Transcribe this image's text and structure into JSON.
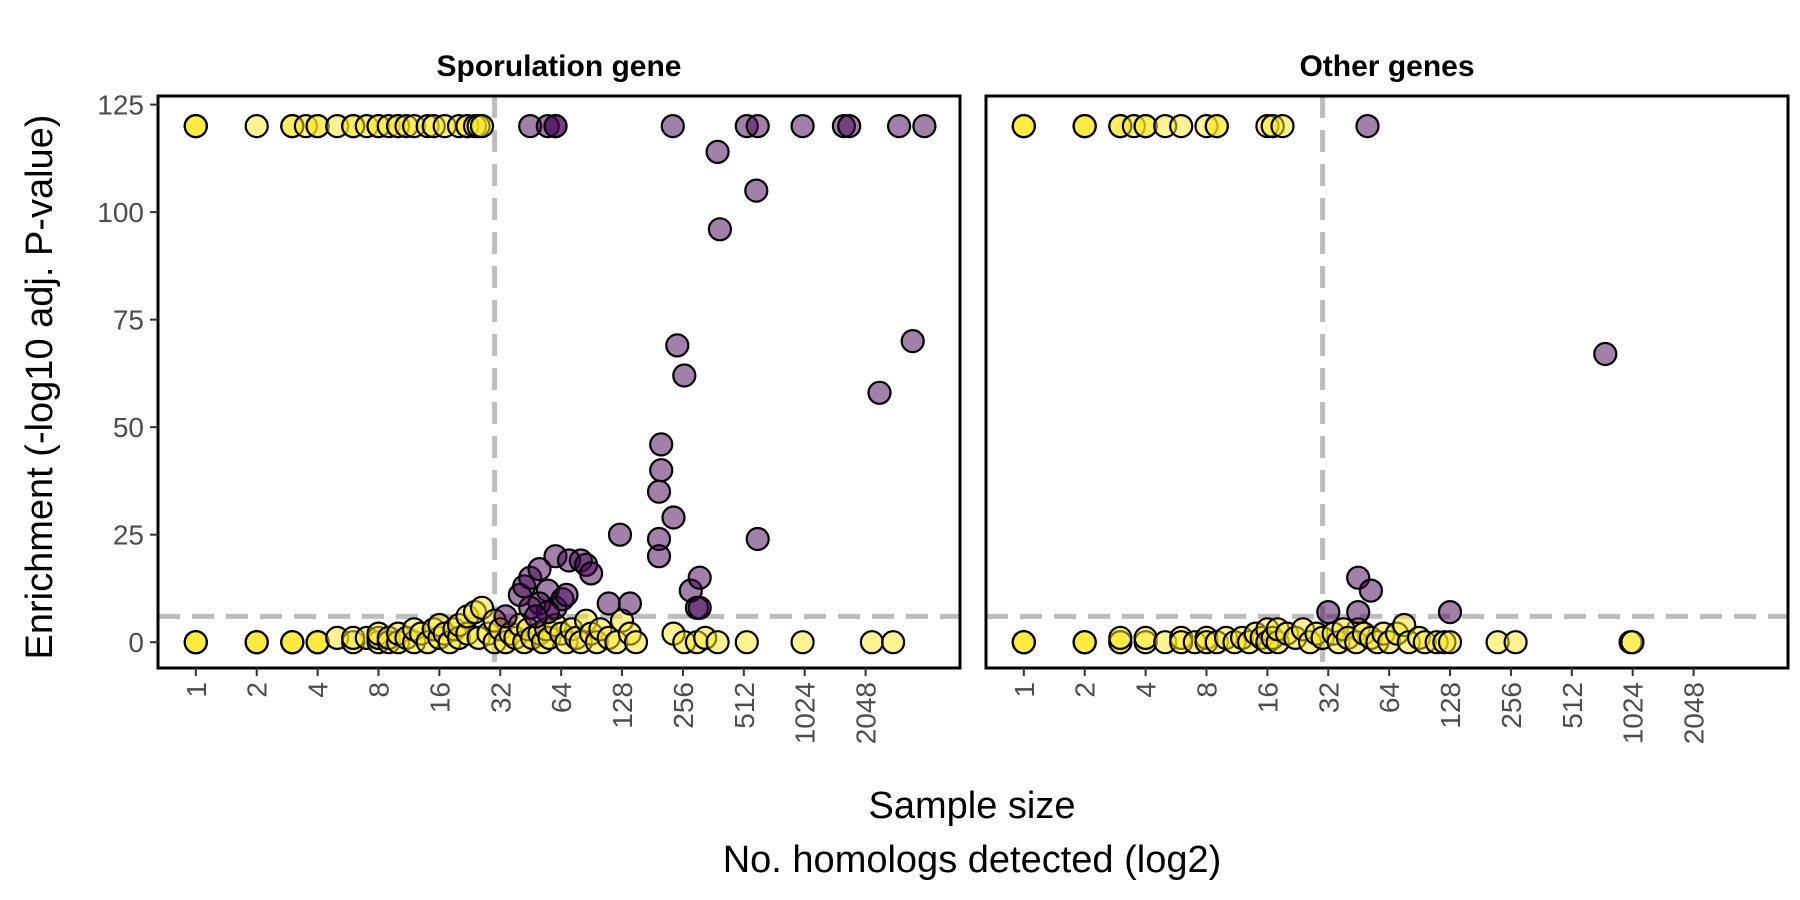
{
  "chart_data": {
    "type": "scatter",
    "xlabel_line1": "Sample size",
    "xlabel_line2": "No. homologs detected (log2)",
    "ylabel": "Enrichment (-log10 adj. P-value)",
    "x_scale": "log2",
    "x_ticks": [
      1,
      2,
      4,
      8,
      16,
      32,
      64,
      128,
      256,
      512,
      1024,
      2048
    ],
    "y_ticks": [
      0,
      25,
      50,
      75,
      100,
      125
    ],
    "ylim": [
      -6,
      127
    ],
    "x_range": [
      0.65,
      6000
    ],
    "threshold_x": 30,
    "threshold_y": 6,
    "colors": {
      "significant": "#440154",
      "not_significant": "#fde725",
      "reference_line": "#bdbdbd"
    },
    "point_opacity": 0.5,
    "panels": [
      {
        "title": "Sporulation gene",
        "points": [
          [
            1,
            120
          ],
          [
            1,
            120
          ],
          [
            1,
            120
          ],
          [
            2,
            120
          ],
          [
            3,
            120
          ],
          [
            3,
            120
          ],
          [
            3.5,
            120
          ],
          [
            4,
            120
          ],
          [
            4,
            120
          ],
          [
            5,
            120
          ],
          [
            6,
            120
          ],
          [
            6,
            120
          ],
          [
            7,
            120
          ],
          [
            8,
            120
          ],
          [
            8,
            120
          ],
          [
            9,
            120
          ],
          [
            10,
            120
          ],
          [
            10,
            120
          ],
          [
            11,
            120
          ],
          [
            12,
            120
          ],
          [
            14,
            120
          ],
          [
            15,
            120
          ],
          [
            17,
            120
          ],
          [
            20,
            120
          ],
          [
            22,
            120
          ],
          [
            22,
            120
          ],
          [
            24,
            120
          ],
          [
            25,
            120
          ],
          [
            26,
            120
          ],
          [
            45,
            120
          ],
          [
            55,
            120
          ],
          [
            60,
            120
          ],
          [
            60,
            120
          ],
          [
            228,
            120
          ],
          [
            530,
            120
          ],
          [
            600,
            120
          ],
          [
            1000,
            120
          ],
          [
            1600,
            120
          ],
          [
            1700,
            120
          ],
          [
            3000,
            120
          ],
          [
            4000,
            120
          ],
          [
            380,
            114
          ],
          [
            590,
            105
          ],
          [
            390,
            96
          ],
          [
            240,
            69
          ],
          [
            260,
            62
          ],
          [
            3500,
            70
          ],
          [
            2400,
            58
          ],
          [
            200,
            46
          ],
          [
            200,
            40
          ],
          [
            195,
            35
          ],
          [
            230,
            29
          ],
          [
            125,
            25
          ],
          [
            195,
            24
          ],
          [
            195,
            20
          ],
          [
            600,
            24
          ],
          [
            280,
            12
          ],
          [
            310,
            15
          ],
          [
            300,
            8
          ],
          [
            310,
            8
          ],
          [
            140,
            9
          ],
          [
            110,
            9
          ],
          [
            40,
            11
          ],
          [
            42,
            13
          ],
          [
            45,
            15
          ],
          [
            50,
            17
          ],
          [
            55,
            12
          ],
          [
            60,
            8
          ],
          [
            60,
            20
          ],
          [
            65,
            10
          ],
          [
            70,
            19
          ],
          [
            80,
            19
          ],
          [
            85,
            18
          ],
          [
            90,
            16
          ],
          [
            50,
            9
          ],
          [
            45,
            8
          ],
          [
            55,
            7
          ],
          [
            68,
            11
          ],
          [
            1,
            0
          ],
          [
            1,
            0
          ],
          [
            1,
            0
          ],
          [
            2,
            0
          ],
          [
            2,
            0
          ],
          [
            2,
            0
          ],
          [
            3,
            0
          ],
          [
            3,
            0
          ],
          [
            3,
            0
          ],
          [
            4,
            0
          ],
          [
            4,
            0
          ],
          [
            4,
            0
          ],
          [
            5,
            1
          ],
          [
            6,
            0
          ],
          [
            6,
            1
          ],
          [
            7,
            1
          ],
          [
            8,
            0
          ],
          [
            8,
            1
          ],
          [
            8,
            2
          ],
          [
            9,
            0
          ],
          [
            9,
            1
          ],
          [
            10,
            0
          ],
          [
            10,
            2
          ],
          [
            11,
            1
          ],
          [
            12,
            0
          ],
          [
            12,
            3
          ],
          [
            13,
            2
          ],
          [
            14,
            0
          ],
          [
            15,
            3
          ],
          [
            16,
            1
          ],
          [
            16,
            4
          ],
          [
            17,
            2
          ],
          [
            18,
            0
          ],
          [
            19,
            3
          ],
          [
            20,
            1
          ],
          [
            20,
            4
          ],
          [
            22,
            2
          ],
          [
            22,
            6
          ],
          [
            24,
            7
          ],
          [
            25,
            1
          ],
          [
            26,
            8
          ],
          [
            28,
            2
          ],
          [
            30,
            0
          ],
          [
            30,
            5
          ],
          [
            32,
            3
          ],
          [
            34,
            0
          ],
          [
            34,
            6
          ],
          [
            36,
            2
          ],
          [
            38,
            1
          ],
          [
            40,
            4
          ],
          [
            42,
            0
          ],
          [
            44,
            3
          ],
          [
            46,
            1
          ],
          [
            48,
            6
          ],
          [
            50,
            2
          ],
          [
            52,
            0
          ],
          [
            54,
            3
          ],
          [
            56,
            1
          ],
          [
            60,
            4
          ],
          [
            64,
            2
          ],
          [
            68,
            0
          ],
          [
            72,
            3
          ],
          [
            76,
            1
          ],
          [
            80,
            0
          ],
          [
            85,
            5
          ],
          [
            90,
            2
          ],
          [
            96,
            0
          ],
          [
            100,
            3
          ],
          [
            110,
            1
          ],
          [
            120,
            0
          ],
          [
            128,
            5
          ],
          [
            140,
            2
          ],
          [
            150,
            0
          ],
          [
            230,
            2
          ],
          [
            260,
            0
          ],
          [
            300,
            0
          ],
          [
            330,
            1
          ],
          [
            380,
            0
          ],
          [
            530,
            0
          ],
          [
            1000,
            0
          ],
          [
            2200,
            0
          ],
          [
            2800,
            0
          ]
        ]
      },
      {
        "title": "Other genes",
        "points": [
          [
            1,
            120
          ],
          [
            1,
            120
          ],
          [
            1,
            120
          ],
          [
            2,
            120
          ],
          [
            2,
            120
          ],
          [
            2,
            120
          ],
          [
            3,
            120
          ],
          [
            3,
            120
          ],
          [
            3.5,
            120
          ],
          [
            4,
            120
          ],
          [
            4,
            120
          ],
          [
            5,
            120
          ],
          [
            6,
            120
          ],
          [
            8,
            120
          ],
          [
            9,
            120
          ],
          [
            9,
            120
          ],
          [
            16,
            120
          ],
          [
            17,
            120
          ],
          [
            19,
            120
          ],
          [
            50,
            120
          ],
          [
            750,
            67
          ],
          [
            45,
            15
          ],
          [
            52,
            12
          ],
          [
            45,
            7
          ],
          [
            128,
            7
          ],
          [
            45,
            3
          ],
          [
            1,
            0
          ],
          [
            1,
            0
          ],
          [
            1,
            0
          ],
          [
            2,
            0
          ],
          [
            2,
            0
          ],
          [
            2,
            0
          ],
          [
            3,
            0
          ],
          [
            3,
            0
          ],
          [
            3,
            1
          ],
          [
            4,
            0
          ],
          [
            4,
            1
          ],
          [
            5,
            0
          ],
          [
            6,
            1
          ],
          [
            6,
            0
          ],
          [
            7,
            0
          ],
          [
            8,
            1
          ],
          [
            8,
            0
          ],
          [
            9,
            0
          ],
          [
            10,
            1
          ],
          [
            11,
            0
          ],
          [
            12,
            1
          ],
          [
            13,
            0
          ],
          [
            14,
            2
          ],
          [
            15,
            1
          ],
          [
            16,
            3
          ],
          [
            16,
            0
          ],
          [
            17,
            1
          ],
          [
            18,
            0
          ],
          [
            18,
            3
          ],
          [
            20,
            2
          ],
          [
            22,
            1
          ],
          [
            24,
            3
          ],
          [
            26,
            0
          ],
          [
            28,
            2
          ],
          [
            30,
            1
          ],
          [
            32,
            7
          ],
          [
            34,
            2
          ],
          [
            36,
            0
          ],
          [
            38,
            3
          ],
          [
            40,
            1
          ],
          [
            44,
            0
          ],
          [
            48,
            2
          ],
          [
            52,
            1
          ],
          [
            56,
            0
          ],
          [
            60,
            2
          ],
          [
            64,
            0
          ],
          [
            70,
            2
          ],
          [
            76,
            4
          ],
          [
            80,
            0
          ],
          [
            90,
            1
          ],
          [
            96,
            0
          ],
          [
            110,
            0
          ],
          [
            120,
            0
          ],
          [
            128,
            0
          ],
          [
            220,
            0
          ],
          [
            270,
            0
          ],
          [
            1000,
            0
          ],
          [
            1020,
            0
          ]
        ]
      }
    ]
  }
}
